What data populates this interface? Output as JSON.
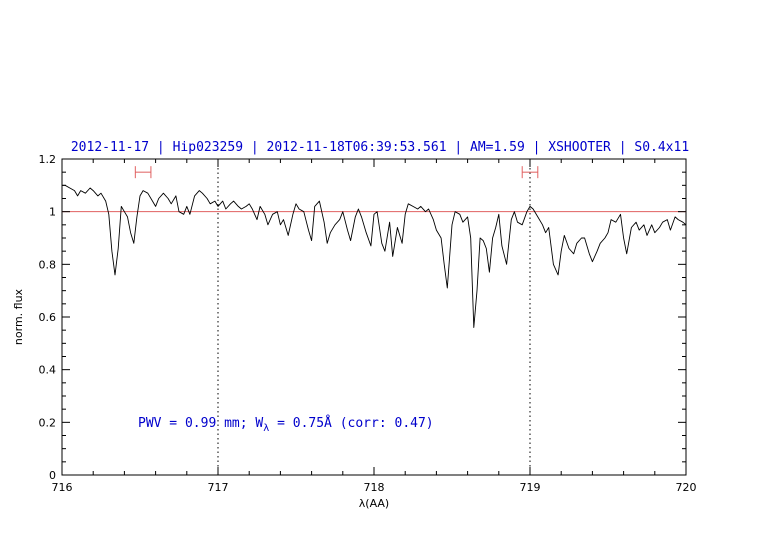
{
  "chart_data": {
    "type": "line",
    "title": "2012-11-17 | Hip023259 | 2012-11-18T06:39:53.561 | AM=1.59 | XSHOOTER | S0.4x11",
    "xlabel": "λ(AA)",
    "ylabel": "norm. flux",
    "xlim": [
      716,
      720
    ],
    "ylim": [
      0,
      1.2
    ],
    "x_ticks": [
      "716",
      "717",
      "718",
      "719",
      "720"
    ],
    "y_ticks": [
      "0",
      "0.2",
      "0.4",
      "0.6",
      "0.8",
      "1",
      "1.2"
    ],
    "annotation": {
      "prefix": "PWV = 0.99 mm; W",
      "subscript": "λ",
      "suffix": " = 0.75Å (corr: 0.47)"
    },
    "reference_line": {
      "y": 1.0,
      "color": "#e06060"
    },
    "vertical_markers": [
      717.0,
      719.0
    ],
    "ranges": [
      {
        "x": [
          716.47,
          716.57
        ],
        "y": 1.15,
        "color": "#e06060"
      },
      {
        "x": [
          718.95,
          719.05
        ],
        "y": 1.15,
        "color": "#e06060"
      }
    ],
    "series": [
      {
        "color": "#000000",
        "x": [
          716.0,
          716.02,
          716.05,
          716.08,
          716.1,
          716.12,
          716.15,
          716.18,
          716.2,
          716.23,
          716.25,
          716.28,
          716.3,
          716.32,
          716.34,
          716.36,
          716.38,
          716.4,
          716.42,
          716.44,
          716.46,
          716.48,
          716.5,
          716.52,
          716.55,
          716.58,
          716.6,
          716.62,
          716.65,
          716.68,
          716.7,
          716.73,
          716.75,
          716.78,
          716.8,
          716.82,
          716.85,
          716.88,
          716.9,
          716.93,
          716.95,
          716.98,
          717.0,
          717.03,
          717.05,
          717.08,
          717.1,
          717.13,
          717.15,
          717.18,
          717.2,
          717.22,
          717.25,
          717.27,
          717.3,
          717.32,
          717.35,
          717.38,
          717.4,
          717.42,
          717.45,
          717.48,
          717.5,
          717.52,
          717.55,
          717.58,
          717.6,
          717.62,
          717.65,
          717.68,
          717.7,
          717.72,
          717.75,
          717.78,
          717.8,
          717.83,
          717.85,
          717.88,
          717.9,
          717.92,
          717.95,
          717.98,
          718.0,
          718.02,
          718.05,
          718.07,
          718.1,
          718.12,
          718.15,
          718.18,
          718.2,
          718.22,
          718.25,
          718.28,
          718.3,
          718.33,
          718.35,
          718.38,
          718.4,
          718.43,
          718.45,
          718.47,
          718.5,
          718.52,
          718.55,
          718.57,
          718.6,
          718.62,
          718.64,
          718.66,
          718.68,
          718.7,
          718.72,
          718.74,
          718.76,
          718.78,
          718.8,
          718.82,
          718.85,
          718.88,
          718.9,
          718.92,
          718.95,
          718.98,
          719.0,
          719.02,
          719.05,
          719.08,
          719.1,
          719.12,
          719.15,
          719.18,
          719.2,
          719.22,
          719.25,
          719.28,
          719.3,
          719.33,
          719.35,
          719.38,
          719.4,
          719.43,
          719.45,
          719.48,
          719.5,
          719.52,
          719.55,
          719.58,
          719.6,
          719.62,
          719.65,
          719.68,
          719.7,
          719.73,
          719.75,
          719.78,
          719.8,
          719.83,
          719.85,
          719.88,
          719.9,
          719.93,
          719.95,
          719.98,
          720.0
        ],
        "y": [
          1.1,
          1.1,
          1.09,
          1.08,
          1.06,
          1.08,
          1.07,
          1.09,
          1.08,
          1.06,
          1.07,
          1.04,
          0.99,
          0.85,
          0.76,
          0.86,
          1.02,
          1.0,
          0.98,
          0.92,
          0.88,
          0.98,
          1.06,
          1.08,
          1.07,
          1.04,
          1.02,
          1.05,
          1.07,
          1.05,
          1.03,
          1.06,
          1.0,
          0.99,
          1.02,
          0.99,
          1.06,
          1.08,
          1.07,
          1.05,
          1.03,
          1.04,
          1.02,
          1.04,
          1.01,
          1.03,
          1.04,
          1.02,
          1.01,
          1.02,
          1.03,
          1.01,
          0.97,
          1.02,
          0.99,
          0.95,
          0.99,
          1.0,
          0.95,
          0.97,
          0.91,
          0.99,
          1.03,
          1.01,
          1.0,
          0.93,
          0.89,
          1.02,
          1.04,
          0.96,
          0.88,
          0.92,
          0.95,
          0.97,
          1.0,
          0.93,
          0.89,
          0.98,
          1.01,
          0.98,
          0.92,
          0.87,
          0.99,
          1.0,
          0.88,
          0.85,
          0.96,
          0.83,
          0.94,
          0.88,
          0.99,
          1.03,
          1.02,
          1.01,
          1.02,
          1.0,
          1.01,
          0.97,
          0.93,
          0.9,
          0.8,
          0.71,
          0.95,
          1.0,
          0.99,
          0.96,
          0.98,
          0.9,
          0.56,
          0.7,
          0.9,
          0.89,
          0.86,
          0.77,
          0.9,
          0.94,
          0.99,
          0.87,
          0.8,
          0.97,
          1.0,
          0.96,
          0.95,
          1.0,
          1.02,
          1.01,
          0.98,
          0.95,
          0.92,
          0.94,
          0.8,
          0.76,
          0.85,
          0.91,
          0.86,
          0.84,
          0.88,
          0.9,
          0.9,
          0.84,
          0.81,
          0.85,
          0.88,
          0.9,
          0.92,
          0.97,
          0.96,
          0.99,
          0.9,
          0.84,
          0.94,
          0.96,
          0.93,
          0.95,
          0.91,
          0.95,
          0.92,
          0.94,
          0.96,
          0.97,
          0.93,
          0.98,
          0.97,
          0.96,
          0.95
        ]
      }
    ]
  }
}
